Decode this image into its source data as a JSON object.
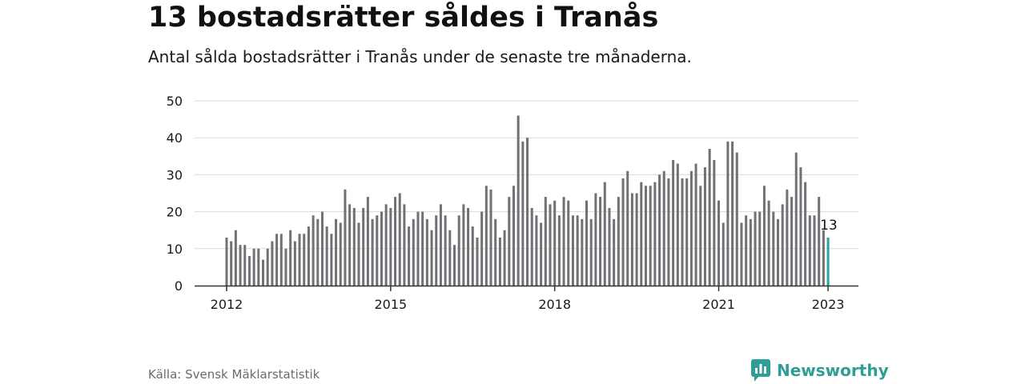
{
  "title": "13 bostadsrätter såldes i Tranås",
  "subtitle": "Antal sålda bostadsrätter i Tranås under de senaste tre månaderna.",
  "source": "Källa: Svensk Mäklarstatistik",
  "brand": {
    "name": "Newsworthy",
    "icon": "newsworthy-logo-icon"
  },
  "colors": {
    "bar": "#707075",
    "highlight": "#27a39c",
    "grid": "#d9d9d9",
    "axis": "#333333"
  },
  "chart_data": {
    "type": "bar",
    "x_start": "2012-01",
    "x_ticks": [
      "2012",
      "2015",
      "2018",
      "2021",
      "2023"
    ],
    "y_ticks": [
      "0",
      "10",
      "20",
      "30",
      "40",
      "50"
    ],
    "ylim": [
      0,
      50
    ],
    "grid": true,
    "values": [
      13,
      12,
      15,
      11,
      11,
      8,
      10,
      10,
      7,
      10,
      12,
      14,
      14,
      10,
      15,
      12,
      14,
      14,
      16,
      19,
      18,
      20,
      16,
      14,
      18,
      17,
      26,
      22,
      21,
      17,
      21,
      24,
      18,
      19,
      20,
      22,
      21,
      24,
      25,
      22,
      16,
      18,
      20,
      20,
      18,
      15,
      19,
      22,
      19,
      15,
      11,
      19,
      22,
      21,
      16,
      13,
      20,
      27,
      26,
      18,
      13,
      15,
      24,
      27,
      46,
      39,
      40,
      21,
      19,
      17,
      24,
      22,
      23,
      19,
      24,
      23,
      19,
      19,
      18,
      23,
      18,
      25,
      24,
      28,
      21,
      18,
      24,
      29,
      31,
      25,
      25,
      28,
      27,
      27,
      28,
      30,
      31,
      29,
      34,
      33,
      29,
      29,
      31,
      33,
      27,
      32,
      37,
      34,
      23,
      17,
      39,
      39,
      36,
      17,
      19,
      18,
      20,
      20,
      27,
      23,
      20,
      18,
      22,
      26,
      24,
      36,
      32,
      28,
      19,
      19,
      24,
      15,
      13
    ],
    "highlight_index": 132,
    "highlight_label": "13"
  }
}
